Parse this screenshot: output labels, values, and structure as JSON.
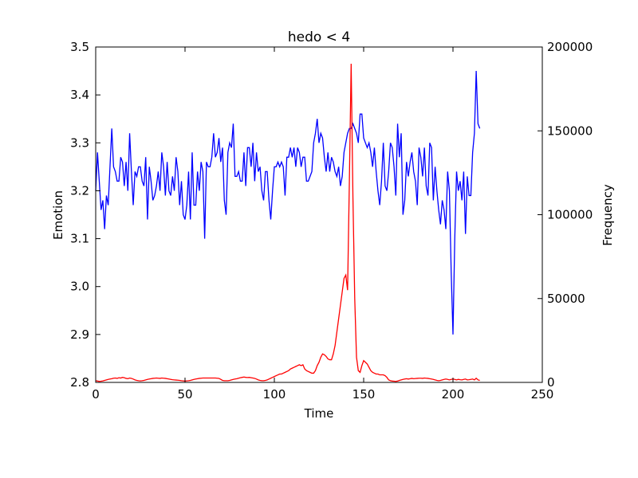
{
  "chart_data": {
    "type": "line",
    "title": "hedo < 4",
    "xlabel": "Time",
    "ylabel": "Emotion",
    "y2label": "Frequency",
    "x": [
      0,
      1,
      2,
      3,
      4,
      5,
      6,
      7,
      8,
      9,
      10,
      11,
      12,
      13,
      14,
      15,
      16,
      17,
      18,
      19,
      20,
      21,
      22,
      23,
      24,
      25,
      26,
      27,
      28,
      29,
      30,
      31,
      32,
      33,
      34,
      35,
      36,
      37,
      38,
      39,
      40,
      41,
      42,
      43,
      44,
      45,
      46,
      47,
      48,
      49,
      50,
      51,
      52,
      53,
      54,
      55,
      56,
      57,
      58,
      59,
      60,
      61,
      62,
      63,
      64,
      65,
      66,
      67,
      68,
      69,
      70,
      71,
      72,
      73,
      74,
      75,
      76,
      77,
      78,
      79,
      80,
      81,
      82,
      83,
      84,
      85,
      86,
      87,
      88,
      89,
      90,
      91,
      92,
      93,
      94,
      95,
      96,
      97,
      98,
      99,
      100,
      101,
      102,
      103,
      104,
      105,
      106,
      107,
      108,
      109,
      110,
      111,
      112,
      113,
      114,
      115,
      116,
      117,
      118,
      119,
      120,
      121,
      122,
      123,
      124,
      125,
      126,
      127,
      128,
      129,
      130,
      131,
      132,
      133,
      134,
      135,
      136,
      137,
      138,
      139,
      140,
      141,
      142,
      143,
      144,
      145,
      146,
      147,
      148,
      149,
      150,
      151,
      152,
      153,
      154,
      155,
      156,
      157,
      158,
      159,
      160,
      161,
      162,
      163,
      164,
      165,
      166,
      167,
      168,
      169,
      170,
      171,
      172,
      173,
      174,
      175,
      176,
      177,
      178,
      179,
      180,
      181,
      182,
      183,
      184,
      185,
      186,
      187,
      188,
      189,
      190,
      191,
      192,
      193,
      194,
      195,
      196,
      197,
      198,
      199,
      200,
      201,
      202,
      203,
      204,
      205,
      206,
      207,
      208,
      209,
      210,
      211,
      212,
      213,
      214,
      215
    ],
    "series": [
      {
        "name": "Emotion",
        "color": "#0000ff",
        "values": [
          3.2,
          3.28,
          3.22,
          3.16,
          3.18,
          3.12,
          3.19,
          3.17,
          3.25,
          3.33,
          3.25,
          3.24,
          3.22,
          3.22,
          3.27,
          3.26,
          3.21,
          3.26,
          3.2,
          3.32,
          3.24,
          3.17,
          3.24,
          3.23,
          3.25,
          3.25,
          3.22,
          3.21,
          3.27,
          3.14,
          3.25,
          3.22,
          3.18,
          3.19,
          3.21,
          3.24,
          3.2,
          3.28,
          3.25,
          3.19,
          3.26,
          3.2,
          3.19,
          3.23,
          3.2,
          3.27,
          3.24,
          3.17,
          3.22,
          3.15,
          3.14,
          3.17,
          3.24,
          3.14,
          3.28,
          3.17,
          3.17,
          3.24,
          3.2,
          3.26,
          3.24,
          3.1,
          3.26,
          3.25,
          3.25,
          3.27,
          3.32,
          3.27,
          3.28,
          3.31,
          3.26,
          3.29,
          3.18,
          3.15,
          3.28,
          3.3,
          3.29,
          3.34,
          3.23,
          3.23,
          3.24,
          3.22,
          3.22,
          3.28,
          3.21,
          3.29,
          3.29,
          3.25,
          3.3,
          3.22,
          3.28,
          3.24,
          3.25,
          3.2,
          3.18,
          3.24,
          3.24,
          3.18,
          3.14,
          3.2,
          3.25,
          3.25,
          3.26,
          3.25,
          3.26,
          3.25,
          3.19,
          3.27,
          3.27,
          3.29,
          3.27,
          3.29,
          3.25,
          3.29,
          3.28,
          3.25,
          3.27,
          3.27,
          3.22,
          3.22,
          3.23,
          3.24,
          3.3,
          3.32,
          3.35,
          3.3,
          3.32,
          3.31,
          3.27,
          3.24,
          3.28,
          3.24,
          3.27,
          3.26,
          3.24,
          3.23,
          3.25,
          3.21,
          3.23,
          3.28,
          3.3,
          3.32,
          3.33,
          3.33,
          3.34,
          3.33,
          3.32,
          3.3,
          3.36,
          3.36,
          3.31,
          3.3,
          3.29,
          3.3,
          3.28,
          3.25,
          3.29,
          3.24,
          3.2,
          3.17,
          3.22,
          3.3,
          3.21,
          3.2,
          3.24,
          3.3,
          3.29,
          3.25,
          3.19,
          3.34,
          3.27,
          3.32,
          3.15,
          3.18,
          3.26,
          3.23,
          3.26,
          3.28,
          3.24,
          3.22,
          3.17,
          3.29,
          3.27,
          3.23,
          3.29,
          3.21,
          3.19,
          3.3,
          3.29,
          3.18,
          3.25,
          3.2,
          3.16,
          3.13,
          3.18,
          3.16,
          3.12,
          3.24,
          3.2,
          3.03,
          2.9,
          3.1,
          3.24,
          3.2,
          3.22,
          3.18,
          3.24,
          3.11,
          3.23,
          3.19,
          3.19,
          3.28,
          3.32,
          3.45,
          3.34,
          3.33
        ]
      },
      {
        "name": "Frequency",
        "color": "#ff0000",
        "axis": "y2",
        "values": [
          1000,
          800,
          600,
          700,
          900,
          1200,
          1500,
          1800,
          2000,
          2200,
          2500,
          2600,
          2400,
          2800,
          2600,
          3000,
          2800,
          2400,
          2200,
          2600,
          2400,
          2000,
          1500,
          1200,
          1000,
          900,
          1000,
          1200,
          1500,
          1800,
          2000,
          2200,
          2400,
          2500,
          2600,
          2500,
          2400,
          2600,
          2500,
          2400,
          2200,
          2000,
          1800,
          1600,
          1500,
          1400,
          1300,
          1200,
          1000,
          900,
          800,
          900,
          1000,
          1200,
          1500,
          1800,
          2000,
          2200,
          2400,
          2500,
          2600,
          2600,
          2600,
          2600,
          2600,
          2600,
          2600,
          2600,
          2500,
          2400,
          1800,
          1200,
          1000,
          1000,
          1000,
          1200,
          1500,
          1800,
          2000,
          2200,
          2500,
          2800,
          3000,
          3200,
          3000,
          2900,
          3000,
          2800,
          2600,
          2400,
          2000,
          1500,
          1200,
          1000,
          1000,
          1200,
          1500,
          2000,
          2500,
          3000,
          3500,
          4000,
          4500,
          5000,
          5000,
          5500,
          6000,
          6500,
          7000,
          8000,
          8500,
          9000,
          9500,
          10000,
          10500,
          10000,
          10500,
          8000,
          7000,
          6500,
          6000,
          5500,
          5500,
          7000,
          10000,
          12000,
          15000,
          17000,
          16500,
          15500,
          14000,
          13500,
          13500,
          17000,
          22000,
          30000,
          38000,
          46000,
          54000,
          62000,
          64000,
          55000,
          120000,
          190000,
          110000,
          50000,
          15000,
          7000,
          6000,
          10000,
          13000,
          12000,
          11000,
          9000,
          7000,
          6000,
          5500,
          5000,
          5000,
          4500,
          4500,
          4500,
          4000,
          3000,
          1500,
          1000,
          800,
          700,
          600,
          800,
          1200,
          1500,
          1800,
          2000,
          2200,
          2000,
          2200,
          2400,
          2200,
          2300,
          2400,
          2500,
          2500,
          2400,
          2600,
          2500,
          2400,
          2200,
          2000,
          1800,
          1500,
          1200,
          1000,
          1200,
          1500,
          1800,
          2000,
          1800,
          1500,
          1800,
          2000,
          1800,
          1500,
          1800,
          1600,
          1500,
          1800,
          2000,
          1500,
          1600,
          1800,
          2000,
          1500,
          2500,
          1500,
          1200
        ]
      }
    ],
    "xlim": [
      0,
      250
    ],
    "xticks": [
      0,
      50,
      100,
      150,
      200,
      250
    ],
    "ylim": [
      2.8,
      3.5
    ],
    "yticks": [
      2.8,
      2.9,
      {
        "value": 3,
        "label": "3.0"
      },
      3.1,
      3.2,
      3.3,
      3.4,
      3.5
    ],
    "y2lim": [
      0,
      200000
    ],
    "y2ticks": [
      0,
      50000,
      100000,
      150000,
      200000
    ]
  }
}
